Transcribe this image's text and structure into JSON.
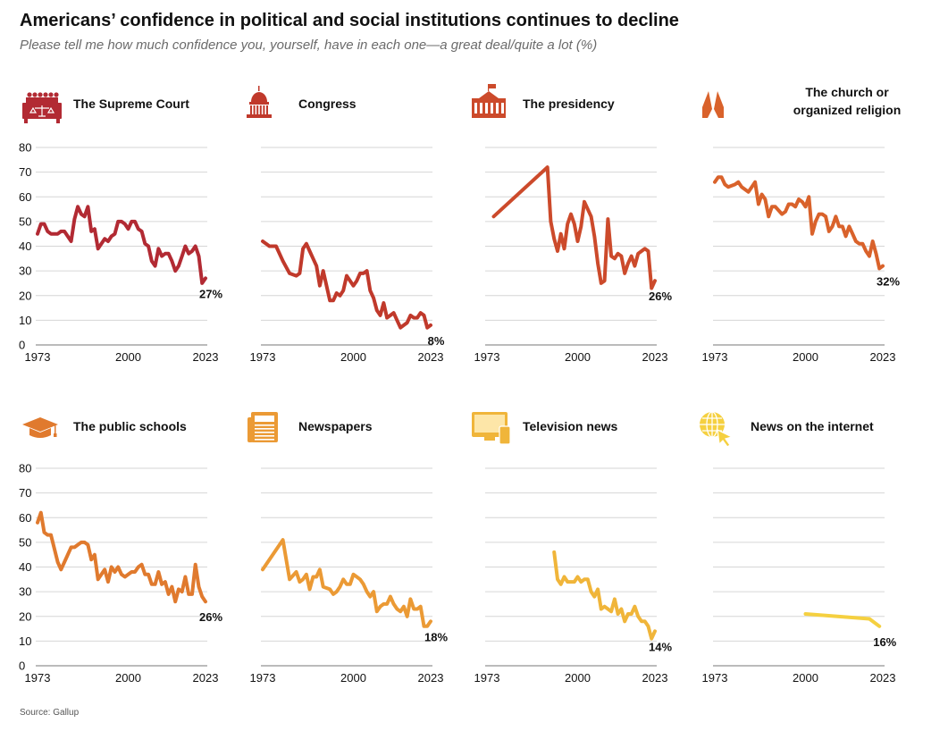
{
  "header": {
    "title": "Americans’ confidence in political and social institutions continues to decline",
    "subtitle": "Please tell me how much confidence you, yourself, have in each one—a great deal/quite a lot (%)",
    "source": "Source: Gallup"
  },
  "axis": {
    "x_ticks": [
      "1973",
      "2000",
      "2023"
    ],
    "x_tick_values": [
      1973,
      2000,
      2023
    ],
    "y_ticks": [
      0,
      10,
      20,
      30,
      40,
      50,
      60,
      70,
      80
    ],
    "xlim": [
      1973,
      2023
    ],
    "ylim": [
      0,
      80
    ]
  },
  "chart_data": [
    {
      "type": "line",
      "title": "The Supreme Court",
      "title_lines": [
        "The Supreme Court"
      ],
      "icon": "courthouse-icon",
      "color": "#b22a33",
      "end_label": "27%",
      "x": [
        1973,
        1974,
        1975,
        1976,
        1977,
        1979,
        1980,
        1981,
        1983,
        1984,
        1985,
        1986,
        1987,
        1988,
        1989,
        1990,
        1991,
        1993,
        1994,
        1995,
        1996,
        1997,
        1998,
        1999,
        2000,
        2001,
        2002,
        2003,
        2004,
        2005,
        2006,
        2007,
        2008,
        2009,
        2010,
        2011,
        2012,
        2013,
        2014,
        2015,
        2016,
        2017,
        2018,
        2019,
        2020,
        2021,
        2022,
        2023
      ],
      "values": [
        45,
        49,
        49,
        46,
        45,
        45,
        46,
        46,
        42,
        51,
        56,
        53,
        52,
        56,
        46,
        47,
        39,
        43,
        42,
        44,
        45,
        50,
        50,
        49,
        47,
        50,
        50,
        47,
        46,
        41,
        40,
        34,
        32,
        39,
        36,
        37,
        37,
        34,
        30,
        32,
        36,
        40,
        37,
        38,
        40,
        36,
        25,
        27
      ]
    },
    {
      "type": "line",
      "title": "Congress",
      "title_lines": [
        "Congress"
      ],
      "icon": "capitol-icon",
      "color": "#c0392b",
      "end_label": "8%",
      "x": [
        1973,
        1974,
        1975,
        1976,
        1977,
        1979,
        1981,
        1983,
        1984,
        1985,
        1986,
        1987,
        1988,
        1989,
        1990,
        1991,
        1993,
        1994,
        1995,
        1996,
        1997,
        1998,
        1999,
        2000,
        2001,
        2002,
        2003,
        2004,
        2005,
        2006,
        2007,
        2008,
        2009,
        2010,
        2011,
        2012,
        2013,
        2014,
        2015,
        2016,
        2017,
        2018,
        2019,
        2020,
        2021,
        2022,
        2023
      ],
      "values": [
        42,
        41,
        40,
        40,
        40,
        34,
        29,
        28,
        29,
        39,
        41,
        38,
        35,
        32,
        24,
        30,
        18,
        18,
        21,
        20,
        22,
        28,
        26,
        24,
        26,
        29,
        29,
        30,
        22,
        19,
        14,
        12,
        17,
        11,
        12,
        13,
        10,
        7,
        8,
        9,
        12,
        11,
        11,
        13,
        12,
        7,
        8
      ]
    },
    {
      "type": "line",
      "title": "The presidency",
      "title_lines": [
        "The presidency"
      ],
      "icon": "white-house-icon",
      "color": "#cc4a2b",
      "end_label": "26%",
      "x": [
        1975,
        1991,
        1992,
        1993,
        1994,
        1995,
        1996,
        1997,
        1998,
        1999,
        2000,
        2001,
        2002,
        2003,
        2004,
        2005,
        2006,
        2007,
        2008,
        2009,
        2010,
        2011,
        2012,
        2013,
        2014,
        2015,
        2016,
        2017,
        2018,
        2019,
        2020,
        2021,
        2022,
        2023
      ],
      "values": [
        52,
        72,
        50,
        43,
        38,
        45,
        39,
        49,
        53,
        49,
        42,
        48,
        58,
        55,
        52,
        44,
        33,
        25,
        26,
        51,
        36,
        35,
        37,
        36,
        29,
        33,
        36,
        32,
        37,
        38,
        39,
        38,
        23,
        26
      ]
    },
    {
      "type": "line",
      "title": "The church or organized religion",
      "title_lines": [
        "The church or",
        "organized religion"
      ],
      "icon": "praying-hands-icon",
      "color": "#d9622b",
      "end_label": "32%",
      "x": [
        1973,
        1974,
        1975,
        1976,
        1977,
        1979,
        1980,
        1981,
        1983,
        1984,
        1985,
        1986,
        1987,
        1988,
        1989,
        1990,
        1991,
        1993,
        1994,
        1995,
        1996,
        1997,
        1998,
        1999,
        2000,
        2001,
        2002,
        2003,
        2004,
        2005,
        2006,
        2007,
        2008,
        2009,
        2010,
        2011,
        2012,
        2013,
        2014,
        2015,
        2016,
        2017,
        2018,
        2019,
        2020,
        2021,
        2022,
        2023
      ],
      "values": [
        66,
        68,
        68,
        65,
        64,
        65,
        66,
        64,
        62,
        64,
        66,
        57,
        61,
        59,
        52,
        56,
        56,
        53,
        54,
        57,
        57,
        56,
        59,
        58,
        56,
        60,
        45,
        50,
        53,
        53,
        52,
        46,
        48,
        52,
        48,
        48,
        44,
        48,
        45,
        42,
        41,
        41,
        38,
        36,
        42,
        37,
        31,
        32
      ]
    },
    {
      "type": "line",
      "title": "The public schools",
      "title_lines": [
        "The public schools"
      ],
      "icon": "graduation-cap-icon",
      "color": "#e07a2e",
      "end_label": "26%",
      "x": [
        1973,
        1974,
        1975,
        1976,
        1977,
        1979,
        1980,
        1981,
        1983,
        1984,
        1985,
        1986,
        1987,
        1988,
        1989,
        1990,
        1991,
        1993,
        1994,
        1995,
        1996,
        1997,
        1998,
        1999,
        2000,
        2001,
        2002,
        2003,
        2004,
        2005,
        2006,
        2007,
        2008,
        2009,
        2010,
        2011,
        2012,
        2013,
        2014,
        2015,
        2016,
        2017,
        2018,
        2019,
        2020,
        2021,
        2022,
        2023
      ],
      "values": [
        58,
        62,
        54,
        53,
        53,
        42,
        39,
        42,
        48,
        48,
        49,
        50,
        50,
        49,
        43,
        45,
        35,
        39,
        34,
        40,
        38,
        40,
        37,
        36,
        37,
        38,
        38,
        40,
        41,
        37,
        37,
        33,
        33,
        38,
        33,
        34,
        29,
        32,
        26,
        31,
        30,
        36,
        29,
        29,
        41,
        32,
        28,
        26
      ]
    },
    {
      "type": "line",
      "title": "Newspapers",
      "title_lines": [
        "Newspapers"
      ],
      "icon": "newspaper-icon",
      "color": "#eb9a35",
      "end_label": "18%",
      "x": [
        1973,
        1979,
        1981,
        1983,
        1984,
        1985,
        1986,
        1987,
        1988,
        1989,
        1990,
        1991,
        1993,
        1994,
        1995,
        1996,
        1997,
        1998,
        1999,
        2000,
        2001,
        2002,
        2003,
        2004,
        2005,
        2006,
        2007,
        2008,
        2009,
        2010,
        2011,
        2012,
        2013,
        2014,
        2015,
        2016,
        2017,
        2018,
        2019,
        2020,
        2021,
        2022,
        2023
      ],
      "values": [
        39,
        51,
        35,
        38,
        34,
        35,
        37,
        31,
        36,
        36,
        39,
        32,
        31,
        29,
        30,
        32,
        35,
        33,
        33,
        37,
        36,
        35,
        33,
        30,
        28,
        30,
        22,
        24,
        25,
        25,
        28,
        25,
        23,
        22,
        24,
        20,
        27,
        23,
        23,
        24,
        16,
        16,
        18
      ]
    },
    {
      "type": "line",
      "title": "Television news",
      "title_lines": [
        "Television news"
      ],
      "icon": "television-icon",
      "color": "#f0b53a",
      "end_label": "14%",
      "x": [
        1993,
        1994,
        1995,
        1996,
        1997,
        1998,
        1999,
        2000,
        2001,
        2002,
        2003,
        2004,
        2005,
        2006,
        2007,
        2008,
        2009,
        2010,
        2011,
        2012,
        2013,
        2014,
        2015,
        2016,
        2017,
        2018,
        2019,
        2020,
        2021,
        2022,
        2023
      ],
      "values": [
        46,
        35,
        33,
        36,
        34,
        34,
        34,
        36,
        34,
        35,
        35,
        30,
        28,
        31,
        23,
        24,
        23,
        22,
        27,
        21,
        23,
        18,
        21,
        21,
        24,
        20,
        18,
        18,
        16,
        11,
        14
      ]
    },
    {
      "type": "line",
      "title": "News on the internet",
      "title_lines": [
        "News on the internet"
      ],
      "icon": "globe-cursor-icon",
      "color": "#f5d040",
      "end_label": "16%",
      "x": [
        2000,
        2019,
        2022
      ],
      "values": [
        21,
        19,
        16
      ]
    }
  ]
}
